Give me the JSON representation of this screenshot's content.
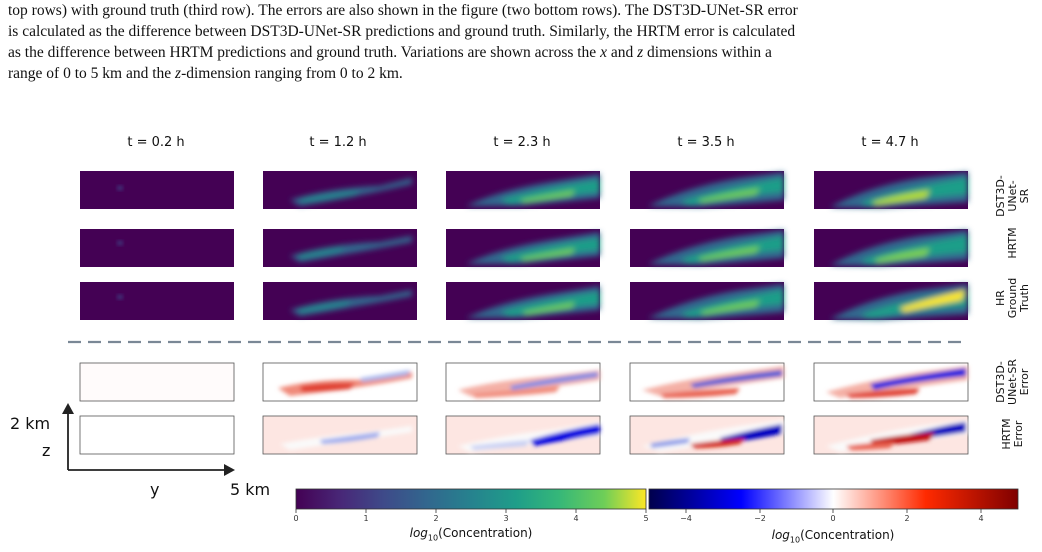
{
  "caption": {
    "line1": "top rows) with ground truth (third row). The errors are also shown in the figure (two bottom rows). The DST3D-UNet-SR error",
    "line2": "is calculated as the difference between DST3D-UNet-SR predictions and ground truth. Similarly, the HRTM error is calculated",
    "line3_a": "as the difference between HRTM predictions and ground truth. Variations are shown across the ",
    "line3_x": "x",
    "line3_b": " and ",
    "line3_z": "z",
    "line3_c": " dimensions within a",
    "line4_a": "range of 0 to 5 km and the ",
    "line4_z": "z",
    "line4_b": "-dimension ranging from 0 to 2 km."
  },
  "time_labels": [
    "t = 0.2 h",
    "t = 1.2 h",
    "t = 2.3 h",
    "t = 3.5 h",
    "t = 4.7 h"
  ],
  "row_labels": {
    "r1": [
      "DST3D-",
      "UNet-",
      "SR"
    ],
    "r2": [
      "HRTM"
    ],
    "r3": [
      "HR",
      "Ground",
      "Truth"
    ],
    "r4": [
      "DST3D-",
      "UNet-SR",
      "Error"
    ],
    "r5": [
      "HRTM",
      "Error"
    ]
  },
  "axes": {
    "z_extent": "2 km",
    "z_label": "z",
    "y_label": "y",
    "y_extent": "5 km"
  },
  "colorbar_left": {
    "ticks": [
      "0",
      "1",
      "2",
      "3",
      "4",
      "5"
    ],
    "label_log": "log",
    "label_sub": "10",
    "label_rest": "(Concentration)"
  },
  "colorbar_right": {
    "ticks": [
      "−4",
      "−2",
      "0",
      "2",
      "4"
    ],
    "label_log": "log",
    "label_sub": "10",
    "label_rest": "(Concentration)"
  },
  "colors": {
    "viridis_dark": "#440154",
    "seismic_low": "#00004c",
    "seismic_high": "#7f0000",
    "divider": "#7a8896"
  }
}
